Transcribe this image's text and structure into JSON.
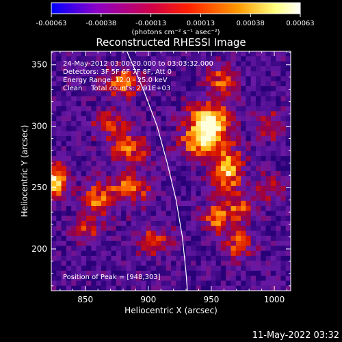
{
  "chart_data": {
    "type": "heatmap",
    "title": "Reconstructed RHESSI Image",
    "xlabel": "Heliocentric X (arcsec)",
    "ylabel": "Heliocentric Y (arcsec)",
    "xlim": [
      823,
      1013
    ],
    "ylim": [
      166,
      361
    ],
    "x_ticks": [
      850,
      900,
      950,
      1000
    ],
    "y_ticks": [
      200,
      250,
      300,
      350
    ],
    "colorbar": {
      "range": [
        -0.00063,
        0.00063
      ],
      "ticks": [
        "-0.00063",
        "-0.00038",
        "-0.00013",
        "0.00013",
        "0.00038",
        "0.00063"
      ],
      "units_label": "(photons cm⁻² s⁻¹ asec⁻²)",
      "colors": [
        "#0000ff",
        "#8b00c8",
        "#d0004a",
        "#ff2000",
        "#ff9a00",
        "#ffff80",
        "#ffffff"
      ]
    },
    "annotations": {
      "time_range": "24-May-2012 03:00:20.000 to 03:03:32.000",
      "detectors": "Detectors: 3F 5F 6F 7F 8F, Att 0",
      "energy_range": "Energy Range: 12.0 - 25.0 keV",
      "clean": "Clean    Total counts: 2.91E+03",
      "peak": "Position of Peak = [948,303]"
    },
    "peak_position": [
      948,
      303
    ],
    "hotspots": [
      {
        "x": 948,
        "y": 303,
        "amp": 1.0,
        "sx": 11,
        "sy": 10
      },
      {
        "x": 940,
        "y": 286,
        "amp": 0.6,
        "sx": 10,
        "sy": 8
      },
      {
        "x": 962,
        "y": 264,
        "amp": 0.7,
        "sx": 9,
        "sy": 14
      },
      {
        "x": 955,
        "y": 226,
        "amp": 0.55,
        "sx": 8,
        "sy": 9
      },
      {
        "x": 972,
        "y": 204,
        "amp": 0.5,
        "sx": 7,
        "sy": 9
      },
      {
        "x": 974,
        "y": 232,
        "amp": 0.45,
        "sx": 7,
        "sy": 7
      },
      {
        "x": 958,
        "y": 336,
        "amp": 0.5,
        "sx": 8,
        "sy": 8
      },
      {
        "x": 880,
        "y": 335,
        "amp": 0.55,
        "sx": 10,
        "sy": 8
      },
      {
        "x": 870,
        "y": 302,
        "amp": 0.45,
        "sx": 9,
        "sy": 7
      },
      {
        "x": 884,
        "y": 282,
        "amp": 0.55,
        "sx": 11,
        "sy": 9
      },
      {
        "x": 886,
        "y": 250,
        "amp": 0.5,
        "sx": 12,
        "sy": 8
      },
      {
        "x": 860,
        "y": 240,
        "amp": 0.5,
        "sx": 8,
        "sy": 10
      },
      {
        "x": 826,
        "y": 255,
        "amp": 0.85,
        "sx": 7,
        "sy": 9
      },
      {
        "x": 850,
        "y": 215,
        "amp": 0.35,
        "sx": 8,
        "sy": 7
      },
      {
        "x": 905,
        "y": 206,
        "amp": 0.4,
        "sx": 10,
        "sy": 8
      },
      {
        "x": 995,
        "y": 250,
        "amp": 0.35,
        "sx": 7,
        "sy": 8
      },
      {
        "x": 998,
        "y": 300,
        "amp": 0.35,
        "sx": 8,
        "sy": 8
      }
    ],
    "limb_curve": [
      [
        883,
        361
      ],
      [
        896,
        330
      ],
      [
        907,
        300
      ],
      [
        915,
        270
      ],
      [
        922,
        240
      ],
      [
        927,
        210
      ],
      [
        930,
        180
      ],
      [
        931,
        166
      ]
    ]
  },
  "footer": {
    "timestamp": "11-May-2022 03:32"
  }
}
